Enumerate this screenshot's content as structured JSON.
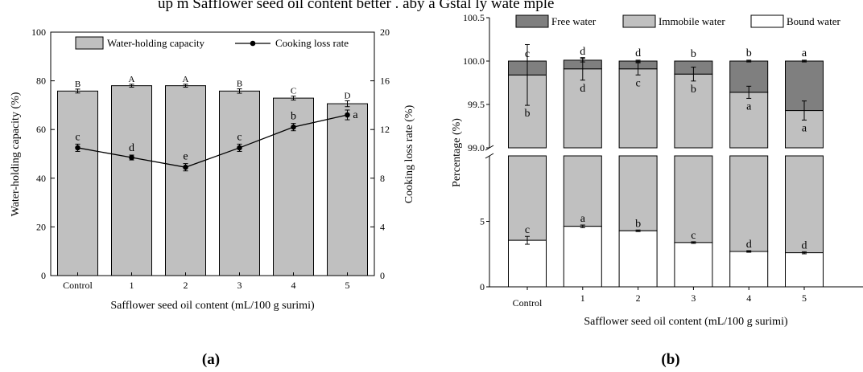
{
  "figure": {
    "cut_off_caption": "up m Safflower seed oil content better . aby a Gstal ly wate mple",
    "panel_labels": [
      "(a)",
      "(b)"
    ]
  },
  "colors": {
    "bar_gray": "#c0c0c0",
    "free_water": "#7f7f7f",
    "immobile_water": "#c0c0c0",
    "bound_water": "#ffffff",
    "line": "#000000"
  },
  "chart_data": [
    {
      "id": "a",
      "type": "bar+line",
      "title": "",
      "xlabel": "Safflower seed oil content (mL/100 g surimi)",
      "ylabel": "Water-holding capacity (%)",
      "y2label": "Cooking loss rate (%)",
      "categories": [
        "Control",
        "1",
        "2",
        "3",
        "4",
        "5"
      ],
      "ylim": [
        0,
        100
      ],
      "yticks": [
        "0",
        "20",
        "40",
        "60",
        "80",
        "100"
      ],
      "y2lim": [
        0,
        20
      ],
      "y2ticks": [
        "0",
        "4",
        "8",
        "12",
        "16",
        "20"
      ],
      "legend": [
        "Water-holding capacity",
        "Cooking loss rate"
      ],
      "legend_position": "top",
      "grid": false,
      "series": [
        {
          "name": "Water-holding capacity",
          "kind": "bar",
          "axis": "left",
          "values": [
            75.8,
            78.0,
            78.0,
            75.8,
            72.9,
            70.6
          ],
          "errors": [
            0.8,
            0.6,
            0.6,
            0.9,
            0.8,
            1.2
          ],
          "letters": [
            "B",
            "A",
            "A",
            "B",
            "C",
            "D"
          ]
        },
        {
          "name": "Cooking loss rate",
          "kind": "line",
          "axis": "right",
          "values": [
            10.5,
            9.7,
            8.9,
            10.5,
            12.2,
            13.2
          ],
          "errors": [
            0.3,
            0.2,
            0.3,
            0.3,
            0.3,
            0.4
          ],
          "letters": [
            "c",
            "d",
            "e",
            "c",
            "b",
            "a"
          ]
        }
      ]
    },
    {
      "id": "b",
      "type": "stacked-bar",
      "title": "",
      "xlabel": "Safflower seed oil content  (mL/100 g surimi)",
      "ylabel": "Percentage (%)",
      "categories": [
        "Control",
        "1",
        "2",
        "3",
        "4",
        "5"
      ],
      "axis_break": true,
      "lower_ylim": [
        0,
        10
      ],
      "lower_yticks": [
        "0",
        "5"
      ],
      "upper_ylim": [
        99.0,
        100.5
      ],
      "upper_yticks": [
        "99.0",
        "99.5",
        "100.0",
        "100.5"
      ],
      "legend": [
        "Free water",
        "Immobile water",
        "Bound water"
      ],
      "legend_position": "top",
      "grid": false,
      "series": [
        {
          "name": "Bound water",
          "values": [
            3.55,
            4.62,
            4.28,
            3.38,
            2.7,
            2.6
          ],
          "errors": [
            0.3,
            0.1,
            0.06,
            0.06,
            0.06,
            0.08
          ],
          "letters": [
            "c",
            "a",
            "b",
            "c",
            "d",
            "d"
          ]
        },
        {
          "name": "Immobile water",
          "top_values": [
            99.84,
            99.91,
            99.91,
            99.85,
            99.64,
            99.43
          ],
          "errors": [
            0.35,
            0.13,
            0.07,
            0.08,
            0.07,
            0.11
          ],
          "letters": [
            "b",
            "d",
            "c",
            "b",
            "a",
            "a"
          ]
        },
        {
          "name": "Free water",
          "top_values": [
            100.0,
            100.01,
            100.0,
            100.0,
            100.0,
            100.0
          ],
          "errors": [
            0.0,
            0.02,
            0.01,
            0.0,
            0.01,
            0.01
          ],
          "letters": [
            "c",
            "d",
            "d",
            "b",
            "b",
            "a"
          ]
        }
      ]
    }
  ]
}
